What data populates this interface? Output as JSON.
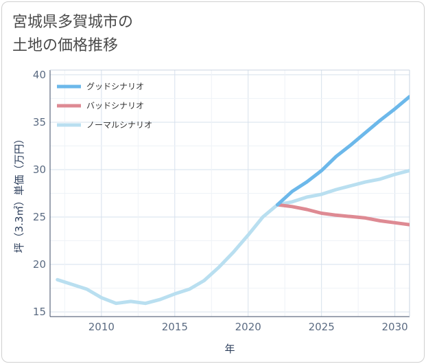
{
  "title": {
    "line1": "宮城県多賀城市の",
    "line2": "土地の価格推移"
  },
  "chart_data": {
    "type": "line",
    "xlabel": "年",
    "ylabel": "坪（3.3㎡）単価（万円）",
    "xlim": [
      2006.5,
      2031
    ],
    "ylim": [
      14.5,
      40.5
    ],
    "xticks": [
      2010,
      2015,
      2020,
      2025,
      2030
    ],
    "yticks": [
      15,
      20,
      25,
      30,
      35,
      40
    ],
    "grid": true,
    "legend_position": "top-left",
    "series": [
      {
        "name": "グッドシナリオ",
        "color": "#6cb8ea",
        "x": [
          2022,
          2023,
          2024,
          2025,
          2026,
          2027,
          2028,
          2029,
          2030,
          2031
        ],
        "y": [
          26.3,
          27.7,
          28.7,
          29.9,
          31.4,
          32.6,
          33.9,
          35.2,
          36.4,
          37.7
        ]
      },
      {
        "name": "バッドシナリオ",
        "color": "#de8a93",
        "x": [
          2022,
          2023,
          2024,
          2025,
          2026,
          2027,
          2028,
          2029,
          2030,
          2031
        ],
        "y": [
          26.3,
          26.1,
          25.8,
          25.4,
          25.2,
          25.05,
          24.9,
          24.6,
          24.4,
          24.2
        ]
      },
      {
        "name": "ノーマルシナリオ",
        "color": "#b9dff0",
        "x": [
          2007,
          2008,
          2009,
          2010,
          2011,
          2012,
          2013,
          2014,
          2015,
          2016,
          2017,
          2018,
          2019,
          2020,
          2021,
          2022,
          2023,
          2024,
          2025,
          2026,
          2027,
          2028,
          2029,
          2030,
          2031
        ],
        "y": [
          18.4,
          17.9,
          17.4,
          16.5,
          15.9,
          16.1,
          15.9,
          16.3,
          16.9,
          17.4,
          18.3,
          19.7,
          21.3,
          23.1,
          25.0,
          26.3,
          26.6,
          27.1,
          27.4,
          27.9,
          28.3,
          28.7,
          29.0,
          29.5,
          29.9
        ]
      }
    ]
  }
}
